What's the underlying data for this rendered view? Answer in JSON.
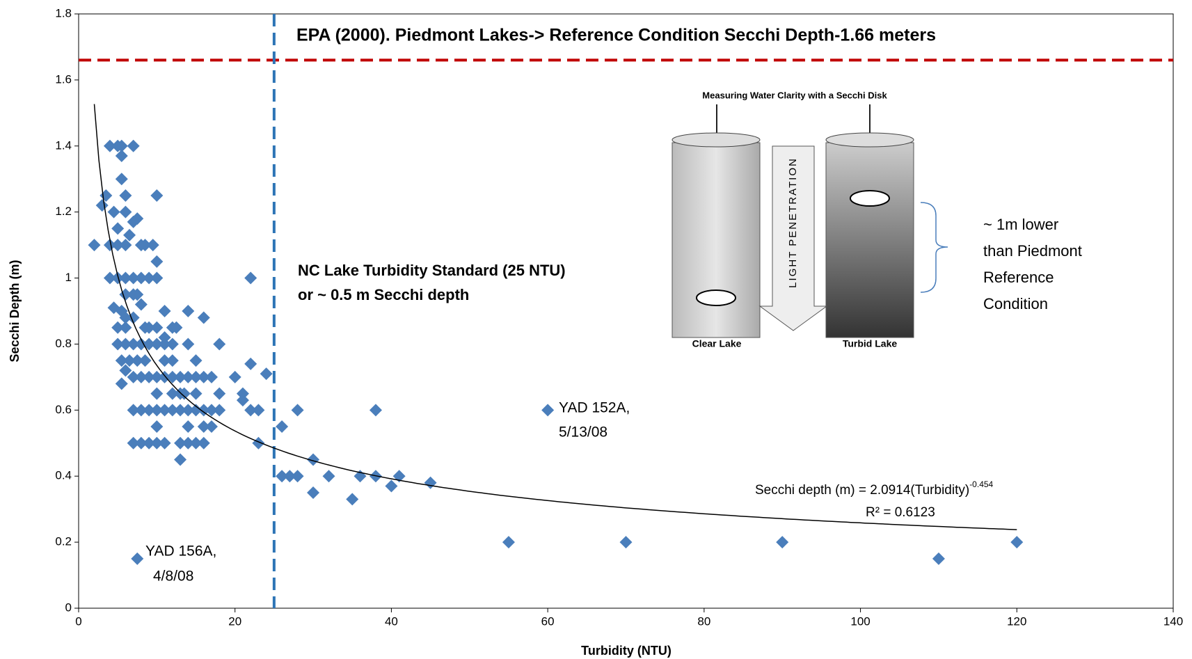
{
  "chart_data": {
    "type": "scatter",
    "x_label": "Turbidity (NTU)",
    "y_label": "Secchi Depth (m)",
    "xlim": [
      0,
      140
    ],
    "xticks": [
      0,
      20,
      40,
      60,
      80,
      100,
      120,
      140
    ],
    "ylim": [
      0,
      1.8
    ],
    "yticks": [
      0,
      0.2,
      0.4,
      0.6,
      0.8,
      1,
      1.2,
      1.4,
      1.6,
      1.8
    ],
    "color": "#4a7ebb",
    "x": [
      2,
      3,
      3.5,
      4,
      5,
      4.5,
      5,
      4,
      5,
      6,
      4,
      5,
      6,
      7,
      8,
      9,
      10,
      5.5,
      5.5,
      5.5,
      7,
      6,
      6,
      7,
      7.5,
      6.5,
      8,
      8.5,
      9.5,
      10,
      10,
      4.5,
      5.5,
      6,
      7,
      7.5,
      8,
      6,
      7,
      6,
      5,
      8.5,
      9,
      10,
      11,
      12,
      12.5,
      11,
      5,
      6,
      7,
      8,
      9,
      10,
      11,
      12,
      5.5,
      6.5,
      7.5,
      8.5,
      6,
      7,
      8,
      9,
      10,
      11,
      12,
      13,
      14,
      15,
      16,
      5.5,
      11,
      12,
      13.5,
      15,
      14,
      16,
      14,
      18,
      17,
      20,
      22,
      24,
      21,
      21,
      22,
      23,
      18,
      18,
      17,
      16,
      15,
      14,
      13,
      12,
      11,
      10,
      9,
      8,
      7,
      10,
      10,
      12,
      13,
      15,
      16,
      17,
      14,
      13,
      14,
      15,
      16,
      7,
      8,
      9,
      10,
      11,
      13,
      22,
      23,
      26,
      26,
      27,
      28,
      28,
      30,
      30,
      32,
      35,
      36,
      38,
      38,
      40,
      41,
      45,
      55,
      60,
      70,
      90,
      110,
      120,
      7.5
    ],
    "values": [
      1.1,
      1.22,
      1.25,
      1.4,
      1.4,
      1.2,
      1.15,
      1.1,
      1.1,
      1.1,
      1.0,
      1.0,
      1.0,
      1.0,
      1.0,
      1.0,
      1.0,
      1.3,
      1.37,
      1.4,
      1.4,
      1.25,
      1.2,
      1.17,
      1.18,
      1.13,
      1.1,
      1.1,
      1.1,
      1.05,
      1.25,
      0.91,
      0.9,
      0.95,
      0.95,
      0.95,
      0.92,
      0.88,
      0.88,
      0.85,
      0.85,
      0.85,
      0.85,
      0.85,
      0.9,
      0.85,
      0.85,
      0.82,
      0.8,
      0.8,
      0.8,
      0.8,
      0.8,
      0.8,
      0.8,
      0.8,
      0.75,
      0.75,
      0.75,
      0.75,
      0.72,
      0.7,
      0.7,
      0.7,
      0.7,
      0.7,
      0.7,
      0.7,
      0.7,
      0.7,
      0.7,
      0.68,
      0.75,
      0.75,
      0.65,
      0.75,
      0.9,
      0.88,
      0.8,
      0.8,
      0.7,
      0.7,
      0.74,
      0.71,
      0.65,
      0.63,
      0.6,
      0.6,
      0.65,
      0.6,
      0.6,
      0.6,
      0.6,
      0.6,
      0.6,
      0.6,
      0.6,
      0.6,
      0.6,
      0.6,
      0.6,
      0.65,
      0.55,
      0.65,
      0.65,
      0.65,
      0.55,
      0.55,
      0.55,
      0.5,
      0.5,
      0.5,
      0.5,
      0.5,
      0.5,
      0.5,
      0.5,
      0.5,
      0.45,
      1.0,
      0.5,
      0.55,
      0.4,
      0.4,
      0.4,
      0.6,
      0.45,
      0.35,
      0.4,
      0.33,
      0.4,
      0.4,
      0.6,
      0.37,
      0.4,
      0.38,
      0.2,
      0.6,
      0.2,
      0.2,
      0.15,
      0.2,
      0.15
    ],
    "trendline": {
      "coefficient": 2.0914,
      "exponent": -0.454,
      "x_range": [
        2,
        120
      ],
      "label": "Secchi depth (m) = 2.0914(Turbidity)",
      "exponent_label": "-0.454",
      "r2_label": "R² = 0.6123",
      "color": "#000000"
    },
    "hline": {
      "value": 1.66,
      "color": "#c00000",
      "label": "EPA (2000). Piedmont Lakes-> Reference Condition Secchi Depth-1.66 meters"
    },
    "vline": {
      "value": 25,
      "color": "#2e75b6",
      "label": [
        "NC Lake Turbidity Standard (25 NTU)",
        "or ~ 0.5 m Secchi depth"
      ]
    },
    "annotations": [
      [
        "YAD 152A,",
        "5/13/08"
      ],
      [
        "YAD 156A,",
        "4/8/08"
      ],
      [
        "~ 1m lower",
        "than Piedmont",
        "Reference",
        "Condition"
      ]
    ],
    "inset": {
      "title": "Measuring Water Clarity with a Secchi Disk",
      "arrow": "LIGHT PENETRATION",
      "left": "Clear Lake",
      "right": "Turbid Lake"
    }
  }
}
